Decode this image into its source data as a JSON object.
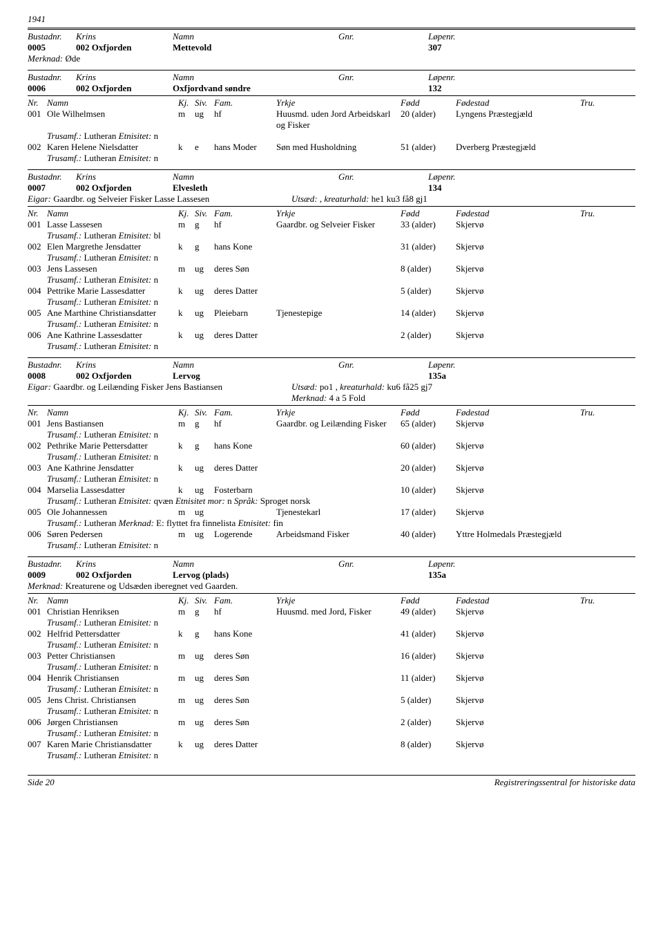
{
  "year": "1941",
  "labels": {
    "bustadnr": "Bustadnr.",
    "krins": "Krins",
    "namn": "Namn",
    "gnr": "Gnr.",
    "lopenr": "Løpenr.",
    "nr": "Nr.",
    "kj": "Kj.",
    "siv": "Siv.",
    "fam": "Fam.",
    "yrkje": "Yrkje",
    "fodd": "Fødd",
    "fodestad": "Fødestad",
    "tru": "Tru.",
    "merknad": "Merknad:",
    "eigar": "Eigar:",
    "utsaed": "Utsæd:",
    "kreaturhald": ", kreaturhald:",
    "trusamf": "Trusamf.:",
    "etnisitet": "Etnisitet:",
    "etnisitet_mor": "Etnisitet mor:",
    "sprak": "Språk:"
  },
  "footer": {
    "left": "Side 20",
    "right": "Registreringssentral for historiske data"
  },
  "res0005": {
    "bustadnr": "0005",
    "krins": "002 Oxfjorden",
    "namn": "Mettevold",
    "lopenr": "307",
    "merknad": "Øde"
  },
  "res0006": {
    "bustadnr": "0006",
    "krins": "002 Oxfjorden",
    "namn": "Oxfjordvand søndre",
    "lopenr": "132",
    "p1": {
      "nr": "001",
      "namn": "Ole Wilhelmsen",
      "kj": "m",
      "siv": "ug",
      "fam": "hf",
      "yrkje": "Huusmd. uden Jord Arbeidskarl og Fisker",
      "fodd": "20 (alder)",
      "fodestad": "Lyngens Præstegjæld",
      "trusamf": "Lutheran",
      "etn": "n"
    },
    "p2": {
      "nr": "002",
      "namn": "Karen Helene Nielsdatter",
      "kj": "k",
      "siv": "e",
      "fam": "hans Moder",
      "yrkje": "Søn med Husholdning",
      "fodd": "51 (alder)",
      "fodestad": "Dverberg Præstegjæld",
      "trusamf": "Lutheran",
      "etn": "n"
    }
  },
  "res0007": {
    "bustadnr": "0007",
    "krins": "002 Oxfjorden",
    "namn": "Elvesleth",
    "lopenr": "134",
    "eigar": "Gaardbr. og Selveier Fisker Lasse Lassesen",
    "kreaturhald": "he1 ku3 få8 gj1",
    "p1": {
      "nr": "001",
      "namn": "Lasse Lassesen",
      "kj": "m",
      "siv": "g",
      "fam": "hf",
      "yrkje": "Gaardbr. og Selveier Fisker",
      "fodd": "33 (alder)",
      "fodestad": "Skjervø",
      "trusamf": "Lutheran",
      "etn": "bl"
    },
    "p2": {
      "nr": "002",
      "namn": "Elen Margrethe Jensdatter",
      "kj": "k",
      "siv": "g",
      "fam": "hans Kone",
      "fodd": "31 (alder)",
      "fodestad": "Skjervø",
      "trusamf": "Lutheran",
      "etn": "n"
    },
    "p3": {
      "nr": "003",
      "namn": "Jens Lassesen",
      "kj": "m",
      "siv": "ug",
      "fam": "deres Søn",
      "fodd": "8 (alder)",
      "fodestad": "Skjervø",
      "trusamf": "Lutheran",
      "etn": "n"
    },
    "p4": {
      "nr": "004",
      "namn": "Pettrike Marie Lassesdatter",
      "kj": "k",
      "siv": "ug",
      "fam": "deres Datter",
      "fodd": "5 (alder)",
      "fodestad": "Skjervø",
      "trusamf": "Lutheran",
      "etn": "n"
    },
    "p5": {
      "nr": "005",
      "namn": "Ane Marthine Christiansdatter",
      "kj": "k",
      "siv": "ug",
      "fam": "Pleiebarn",
      "yrkje": "Tjenestepige",
      "fodd": "14 (alder)",
      "fodestad": "Skjervø",
      "trusamf": "Lutheran",
      "etn": "n"
    },
    "p6": {
      "nr": "006",
      "namn": "Ane Kathrine Lassesdatter",
      "kj": "k",
      "siv": "ug",
      "fam": "deres Datter",
      "fodd": "2 (alder)",
      "fodestad": "Skjervø",
      "trusamf": "Lutheran",
      "etn": "n"
    }
  },
  "res0008": {
    "bustadnr": "0008",
    "krins": "002 Oxfjorden",
    "namn": "Lervog",
    "lopenr": "135a",
    "eigar": "Gaardbr. og Leilænding Fisker Jens Bastiansen",
    "utsaed": "po1",
    "kreaturhald": "ku6 få25 gj7",
    "merknad2": "4 a 5 Fold",
    "p1": {
      "nr": "001",
      "namn": "Jens Bastiansen",
      "kj": "m",
      "siv": "g",
      "fam": "hf",
      "yrkje": "Gaardbr. og Leilænding Fisker",
      "fodd": "65 (alder)",
      "fodestad": "Skjervø",
      "trusamf": "Lutheran",
      "etn": "n"
    },
    "p2": {
      "nr": "002",
      "namn": "Pethrike Marie Pettersdatter",
      "kj": "k",
      "siv": "g",
      "fam": "hans Kone",
      "fodd": "60 (alder)",
      "fodestad": "Skjervø",
      "trusamf": "Lutheran",
      "etn": "n"
    },
    "p3": {
      "nr": "003",
      "namn": "Ane Kathrine Jensdatter",
      "kj": "k",
      "siv": "ug",
      "fam": "deres Datter",
      "fodd": "20 (alder)",
      "fodestad": "Skjervø",
      "trusamf": "Lutheran",
      "etn": "n"
    },
    "p4": {
      "nr": "004",
      "namn": "Marselia Lassesdatter",
      "kj": "k",
      "siv": "ug",
      "fam": "Fosterbarn",
      "fodd": "10 (alder)",
      "fodestad": "Skjervø",
      "trusamf": "Lutheran",
      "etn": "qvæn",
      "etn_mor": "n",
      "sprak": "Sproget norsk"
    },
    "p5": {
      "nr": "005",
      "namn": "Ole Johannessen",
      "kj": "m",
      "siv": "ug",
      "yrkje": "Tjenestekarl",
      "fodd": "17 (alder)",
      "fodestad": "Skjervø",
      "trusamf": "Lutheran",
      "merk": "E: flyttet fra finnelista",
      "etn": "fin"
    },
    "p6": {
      "nr": "006",
      "namn": "Søren Pedersen",
      "kj": "m",
      "siv": "ug",
      "fam": "Logerende",
      "yrkje": "Arbeidsmand Fisker",
      "fodd": "40 (alder)",
      "fodestad": "Yttre Holmedals Præstegjæld",
      "trusamf": "Lutheran",
      "etn": "n"
    }
  },
  "res0009": {
    "bustadnr": "0009",
    "krins": "002 Oxfjorden",
    "namn": "Lervog (plads)",
    "lopenr": "135a",
    "merknad": "Kreaturene og Udsæden iberegnet ved Gaarden.",
    "p1": {
      "nr": "001",
      "namn": "Christian Henriksen",
      "kj": "m",
      "siv": "g",
      "fam": "hf",
      "yrkje": "Huusmd. med Jord, Fisker",
      "fodd": "49 (alder)",
      "fodestad": "Skjervø",
      "trusamf": "Lutheran",
      "etn": "n"
    },
    "p2": {
      "nr": "002",
      "namn": "Helfrid Pettersdatter",
      "kj": "k",
      "siv": "g",
      "fam": "hans Kone",
      "fodd": "41 (alder)",
      "fodestad": "Skjervø",
      "trusamf": "Lutheran",
      "etn": "n"
    },
    "p3": {
      "nr": "003",
      "namn": "Petter Christiansen",
      "kj": "m",
      "siv": "ug",
      "fam": "deres Søn",
      "fodd": "16 (alder)",
      "fodestad": "Skjervø",
      "trusamf": "Lutheran",
      "etn": "n"
    },
    "p4": {
      "nr": "004",
      "namn": "Henrik Christiansen",
      "kj": "m",
      "siv": "ug",
      "fam": "deres Søn",
      "fodd": "11 (alder)",
      "fodestad": "Skjervø",
      "trusamf": "Lutheran",
      "etn": "n"
    },
    "p5": {
      "nr": "005",
      "namn": "Jens Christ. Christiansen",
      "kj": "m",
      "siv": "ug",
      "fam": "deres Søn",
      "fodd": "5 (alder)",
      "fodestad": "Skjervø",
      "trusamf": "Lutheran",
      "etn": "n"
    },
    "p6": {
      "nr": "006",
      "namn": "Jørgen Christiansen",
      "kj": "m",
      "siv": "ug",
      "fam": "deres Søn",
      "fodd": "2 (alder)",
      "fodestad": "Skjervø",
      "trusamf": "Lutheran",
      "etn": "n"
    },
    "p7": {
      "nr": "007",
      "namn": "Karen Marie Christiansdatter",
      "kj": "k",
      "siv": "ug",
      "fam": "deres Datter",
      "fodd": "8 (alder)",
      "fodestad": "Skjervø",
      "trusamf": "Lutheran",
      "etn": "n"
    }
  }
}
